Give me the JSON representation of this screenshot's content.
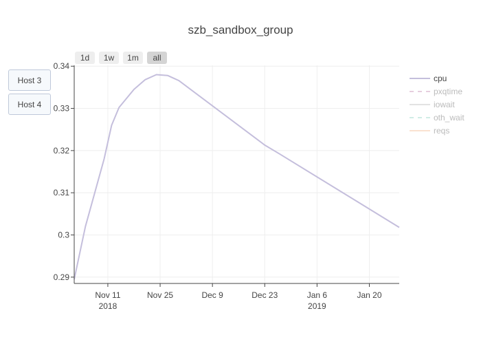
{
  "range_buttons": [
    {
      "label": "1d"
    },
    {
      "label": "1w"
    },
    {
      "label": "1m"
    },
    {
      "label": "all",
      "active": true
    }
  ],
  "host_buttons": [
    {
      "label": "Host 3"
    },
    {
      "label": "Host 4"
    }
  ],
  "chart_data": {
    "type": "line",
    "title": "szb_sandbox_group",
    "xlabel": "",
    "ylabel": "",
    "x_range": [
      "2018-11-02",
      "2019-01-28"
    ],
    "ylim": [
      0.2885,
      0.3402
    ],
    "x_ticks": [
      {
        "date": "2018-11-11",
        "label": "Nov 11",
        "sublabel": "2018"
      },
      {
        "date": "2018-11-25",
        "label": "Nov 25",
        "sublabel": ""
      },
      {
        "date": "2018-12-09",
        "label": "Dec 9",
        "sublabel": ""
      },
      {
        "date": "2018-12-23",
        "label": "Dec 23",
        "sublabel": ""
      },
      {
        "date": "2019-01-06",
        "label": "Jan 6",
        "sublabel": "2019"
      },
      {
        "date": "2019-01-20",
        "label": "Jan 20",
        "sublabel": ""
      }
    ],
    "y_ticks": [
      0.29,
      0.3,
      0.31,
      0.32,
      0.33,
      0.34
    ],
    "y_tick_labels": [
      "0.29",
      "0.3",
      "0.31",
      "0.32",
      "0.33",
      "0.34"
    ],
    "grid": true,
    "legend_position": "right",
    "series": [
      {
        "name": "cpu",
        "color": "#c4bedc",
        "dash": "solid",
        "visible": true,
        "points": [
          {
            "x": "2018-11-02",
            "y": 0.2895
          },
          {
            "x": "2018-11-05",
            "y": 0.302
          },
          {
            "x": "2018-11-10",
            "y": 0.318
          },
          {
            "x": "2018-11-12",
            "y": 0.326
          },
          {
            "x": "2018-11-14",
            "y": 0.3302
          },
          {
            "x": "2018-11-18",
            "y": 0.3345
          },
          {
            "x": "2018-11-21",
            "y": 0.3368
          },
          {
            "x": "2018-11-24",
            "y": 0.338
          },
          {
            "x": "2018-11-27",
            "y": 0.3378
          },
          {
            "x": "2018-11-30",
            "y": 0.3366
          },
          {
            "x": "2018-12-23",
            "y": 0.3213
          },
          {
            "x": "2018-12-27",
            "y": 0.3192
          },
          {
            "x": "2019-01-28",
            "y": 0.3018
          }
        ]
      },
      {
        "name": "pxqtime",
        "color": "#e0c3d7",
        "dash": "dash",
        "visible": false,
        "points": []
      },
      {
        "name": "iowait",
        "color": "#dcdcdc",
        "dash": "solid",
        "visible": false,
        "points": []
      },
      {
        "name": "oth_wait",
        "color": "#c5e8e0",
        "dash": "dash",
        "visible": false,
        "points": []
      },
      {
        "name": "reqs",
        "color": "#f9dcc5",
        "dash": "solid",
        "visible": false,
        "points": []
      }
    ]
  }
}
